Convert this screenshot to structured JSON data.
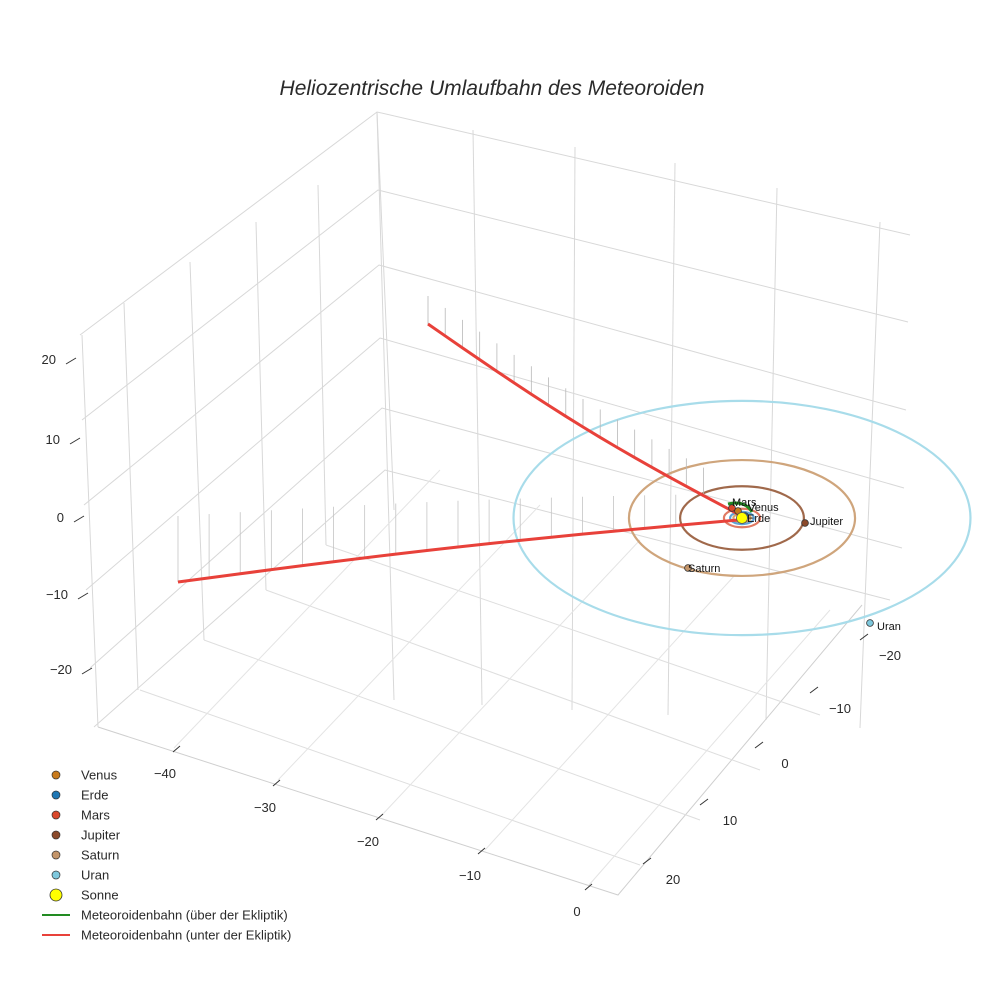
{
  "chart_data": {
    "type": "scatter3d",
    "title": "Heliozentrische Umlaufbahn des Meteoroiden",
    "axes": {
      "x": {
        "ticks": [
          -40,
          -30,
          -20,
          -10,
          0
        ],
        "tick_labels": [
          "−40",
          "−30",
          "−20",
          "−10",
          "0"
        ]
      },
      "y": {
        "ticks": [
          -20,
          -10,
          0,
          10,
          20
        ],
        "tick_labels": [
          "−20",
          "−10",
          "0",
          "10",
          "20"
        ]
      },
      "z": {
        "ticks": [
          -20,
          -10,
          0,
          10,
          20
        ],
        "tick_labels": [
          "−20",
          "−10",
          "0",
          "10",
          "20"
        ]
      },
      "grid": true
    },
    "planets": [
      {
        "name": "Venus",
        "label": "Venus",
        "color": "#c87a1c",
        "orbit_color": "#d9a66a",
        "radius": 0.72
      },
      {
        "name": "Erde",
        "label": "Erde",
        "color": "#1f77b4",
        "orbit_color": "#5fa3d6",
        "radius": 1.0
      },
      {
        "name": "Mars",
        "label": "Mars",
        "color": "#d9472b",
        "orbit_color": "#e07a63",
        "radius": 1.52
      },
      {
        "name": "Jupiter",
        "label": "Jupiter",
        "color": "#8b4a2b",
        "orbit_color": "#a0694b",
        "radius": 5.2
      },
      {
        "name": "Saturn",
        "label": "Saturn",
        "color": "#c4956a",
        "orbit_color": "#cfa57c",
        "radius": 9.5
      },
      {
        "name": "Uran",
        "label": "Uran",
        "color": "#7ec8dd",
        "orbit_color": "#a8dcea",
        "radius": 19.2
      }
    ],
    "sun": {
      "name": "Sonne",
      "color": "#ffff00",
      "x": 0,
      "y": 0,
      "z": 0
    },
    "meteoroid_orbit": {
      "above": {
        "name": "Meteoroidenbahn (über der Ekliptik)",
        "color": "#228b22"
      },
      "below": {
        "name": "Meteoroidenbahn (unter der Ekliptik)",
        "color": "#e8413a"
      }
    },
    "legend": [
      {
        "label": "Venus",
        "kind": "marker",
        "color": "#c87a1c"
      },
      {
        "label": "Erde",
        "kind": "marker",
        "color": "#1f77b4"
      },
      {
        "label": "Mars",
        "kind": "marker",
        "color": "#d9472b"
      },
      {
        "label": "Jupiter",
        "kind": "marker",
        "color": "#8b4a2b"
      },
      {
        "label": "Saturn",
        "kind": "marker",
        "color": "#c4956a"
      },
      {
        "label": "Uran",
        "kind": "marker",
        "color": "#7ec8dd"
      },
      {
        "label": "Sonne",
        "kind": "sun",
        "color": "#ffff00"
      },
      {
        "label": "Meteoroidenbahn (über der Ekliptik)",
        "kind": "line",
        "color": "#228b22"
      },
      {
        "label": "Meteoroidenbahn (unter der Ekliptik)",
        "kind": "line",
        "color": "#e8413a"
      }
    ]
  }
}
